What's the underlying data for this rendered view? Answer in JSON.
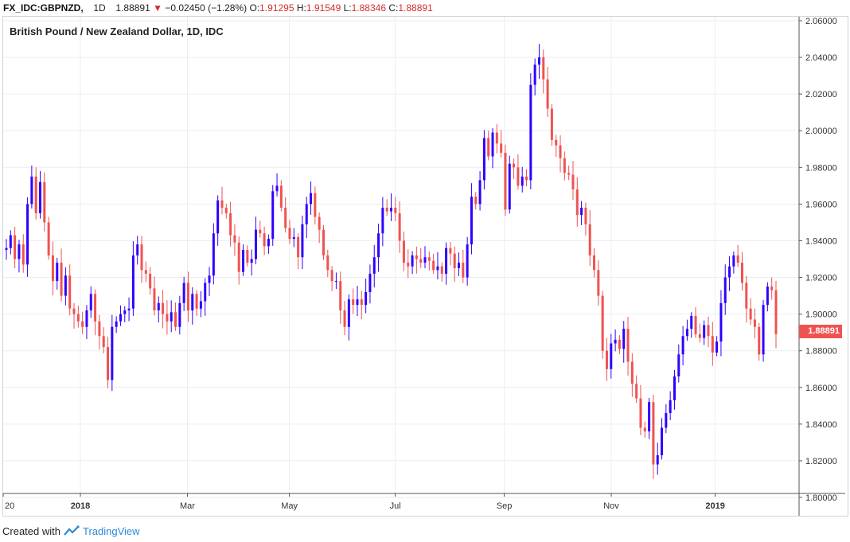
{
  "header": {
    "symbol": "FX_IDC:GBPNZD,",
    "interval": "1D",
    "last": "1.88891",
    "change": "−0.02450",
    "change_pct": "(−1.28%)",
    "o_label": "O:",
    "o_value": "1.91295",
    "h_label": "H:",
    "h_value": "1.91549",
    "l_label": "L:",
    "l_value": "1.88346",
    "c_label": "C:",
    "c_value": "1.88891",
    "arrow_icon": "triangle-down-icon"
  },
  "last_price_badge": "1.88891",
  "footer": {
    "prefix": "Created with",
    "brand": "TradingView",
    "logo_icon": "tradingview-logo-icon"
  },
  "colors": {
    "up": "#2e00ff",
    "down": "#ef5350",
    "grid": "#e9eef3",
    "accent": "#ef5350"
  },
  "chart_data": {
    "type": "candlestick",
    "title": "British Pound / New Zealand Dollar, 1D, IDC",
    "ylim": [
      1.8,
      2.06
    ],
    "y_ticks": [
      "2.06000",
      "2.04000",
      "2.02000",
      "2.00000",
      "1.98000",
      "1.96000",
      "1.94000",
      "1.92000",
      "1.90000",
      "1.88000",
      "1.86000",
      "1.84000",
      "1.82000",
      "1.80000"
    ],
    "x_ticks": [
      {
        "label": "20",
        "pos": 0
      },
      {
        "label": "2018",
        "pos": 0.097,
        "bold": true
      },
      {
        "label": "Mar",
        "pos": 0.2315
      },
      {
        "label": "May",
        "pos": 0.3596
      },
      {
        "label": "Jul",
        "pos": 0.4927
      },
      {
        "label": "Sep",
        "pos": 0.6296
      },
      {
        "label": "Nov",
        "pos": 0.764
      },
      {
        "label": "2019",
        "pos": 0.8946,
        "bold": true
      }
    ],
    "grid": true,
    "series": [
      {
        "name": "GBPNZD",
        "close": [
          1.936,
          1.943,
          1.93,
          1.938,
          1.927,
          1.96,
          1.975,
          1.955,
          1.972,
          1.95,
          1.932,
          1.918,
          1.928,
          1.91,
          1.921,
          1.903,
          1.9,
          1.896,
          1.893,
          1.902,
          1.911,
          1.896,
          1.888,
          1.882,
          1.864,
          1.893,
          1.896,
          1.9,
          1.902,
          1.903,
          1.932,
          1.938,
          1.924,
          1.922,
          1.914,
          1.902,
          1.906,
          1.9,
          1.896,
          1.901,
          1.893,
          1.906,
          1.917,
          1.902,
          1.911,
          1.903,
          1.907,
          1.917,
          1.921,
          1.944,
          1.962,
          1.958,
          1.955,
          1.943,
          1.939,
          1.923,
          1.935,
          1.928,
          1.93,
          1.946,
          1.944,
          1.937,
          1.941,
          1.967,
          1.97,
          1.958,
          1.947,
          1.941,
          1.942,
          1.931,
          1.949,
          1.96,
          1.966,
          1.953,
          1.946,
          1.932,
          1.924,
          1.918,
          1.918,
          1.902,
          1.893,
          1.908,
          1.905,
          1.908,
          1.905,
          1.912,
          1.922,
          1.931,
          1.944,
          1.958,
          1.956,
          1.958,
          1.955,
          1.94,
          1.928,
          1.926,
          1.932,
          1.93,
          1.928,
          1.931,
          1.929,
          1.924,
          1.926,
          1.922,
          1.936,
          1.933,
          1.925,
          1.928,
          1.92,
          1.938,
          1.964,
          1.96,
          1.973,
          1.996,
          1.986,
          1.999,
          1.993,
          1.988,
          1.957,
          1.982,
          1.98,
          1.97,
          1.975,
          1.973,
          2.025,
          2.036,
          2.04,
          2.028,
          2.012,
          1.995,
          1.992,
          1.985,
          1.977,
          1.976,
          1.968,
          1.954,
          1.958,
          1.949,
          1.932,
          1.924,
          1.91,
          1.88,
          1.87,
          1.884,
          1.886,
          1.881,
          1.892,
          1.874,
          1.862,
          1.854,
          1.838,
          1.836,
          1.852,
          1.818,
          1.823,
          1.838,
          1.846,
          1.853,
          1.866,
          1.878,
          1.888,
          1.892,
          1.899,
          1.889,
          1.887,
          1.894,
          1.888,
          1.879,
          1.885,
          1.906,
          1.92,
          1.926,
          1.932,
          1.928,
          1.917,
          1.903,
          1.897,
          1.893,
          1.878,
          1.905,
          1.915,
          1.913,
          1.889
        ]
      }
    ]
  }
}
